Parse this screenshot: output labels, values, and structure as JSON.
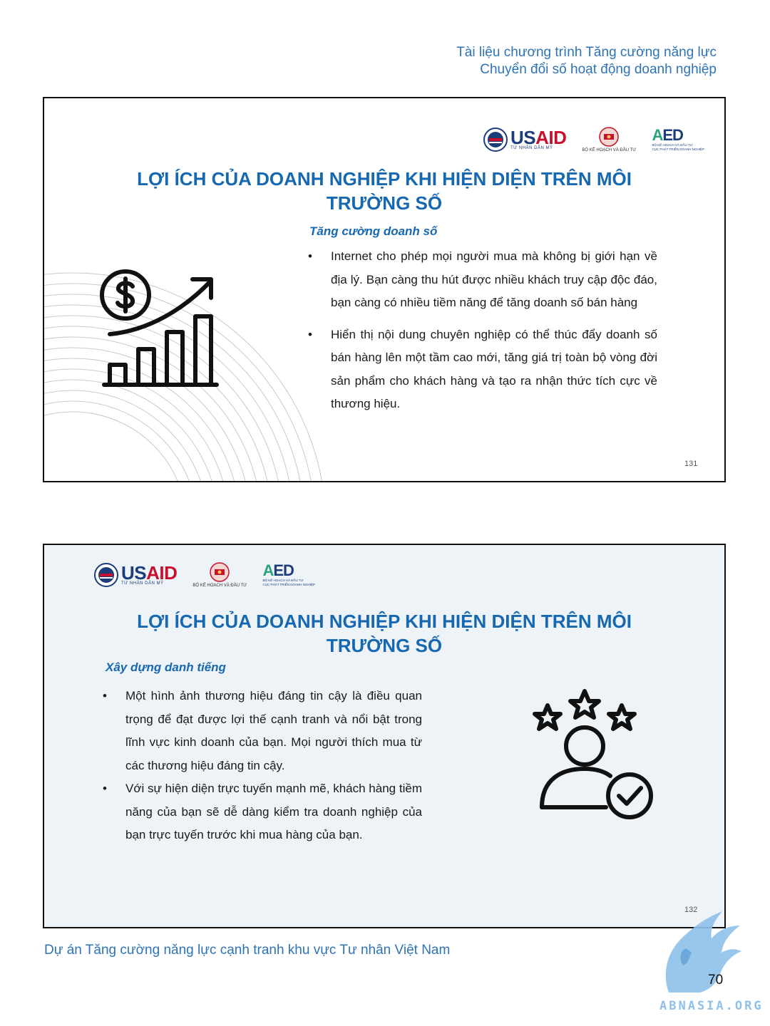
{
  "header": {
    "line1": "Tài liệu chương trình Tăng cường năng lực",
    "line2": "Chuyển đổi số hoạt động doanh nghiệp"
  },
  "logos": {
    "usaid_word_blue": "US",
    "usaid_word_red": "AID",
    "usaid_sub": "TỪ NHÂN DÂN MỸ",
    "mpi_caption": "BỘ KẾ HOẠCH VÀ ĐẦU TƯ",
    "aed_word_green": "A",
    "aed_word_blue": "ED",
    "aed_sub_line1": "BỘ KẾ HOẠCH VÀ ĐẦU TƯ",
    "aed_sub_line2": "CỤC PHÁT TRIỂN DOANH NGHIỆP"
  },
  "slide1": {
    "title_line1": "LỢI ÍCH CỦA DOANH NGHIỆP KHI HIỆN DIỆN TRÊN MÔI",
    "title_line2": "TRƯỜNG SỐ",
    "subtitle": "Tăng cường doanh số",
    "bullets": [
      "Internet cho phép mọi người mua mà không bị giới hạn về địa lý. Bạn càng thu hút được nhiều khách truy cập độc đáo, bạn càng có nhiều tiềm năng để tăng doanh số bán hàng",
      "Hiển thị nội dung chuyên nghiệp có thể thúc đẩy doanh số bán hàng lên một tầm cao mới, tăng giá trị toàn bộ vòng đời sản phẩm cho khách hàng và tạo ra nhận thức tích cực về thương hiệu."
    ],
    "page_number": "131"
  },
  "slide2": {
    "title_line1": "LỢI ÍCH CỦA DOANH NGHIỆP KHI HIỆN DIỆN TRÊN MÔI",
    "title_line2": "TRƯỜNG SỐ",
    "subtitle": "Xây dựng danh tiếng",
    "bullets": [
      "Một hình ảnh thương hiệu đáng tin cậy là điều quan trọng để đạt được lợi thế cạnh tranh và nổi bật trong lĩnh vực kinh doanh của bạn. Mọi người thích mua từ các thương hiệu đáng tin cậy.",
      "Với sự hiện diện trực tuyến mạnh mẽ, khách hàng tiềm năng của bạn sẽ dễ dàng kiểm tra doanh nghiệp của bạn trực tuyến trước khi mua hàng của bạn."
    ],
    "page_number": "132"
  },
  "bullet_glyph": "•",
  "footer": "Dự án Tăng cường năng lực cạnh tranh khu vực Tư nhân Việt Nam",
  "page_number": "70",
  "watermark": "ABNASIA.ORG",
  "colors": {
    "title_blue": "#1668b0",
    "header_blue": "#2d73b5",
    "slide2_bg": "#eef3f8"
  },
  "icons": [
    "dollar-growth-chart-icon",
    "user-stars-check-icon",
    "usaid-seal-icon",
    "mpi-emblem-icon",
    "griffin-watermark-icon"
  ]
}
